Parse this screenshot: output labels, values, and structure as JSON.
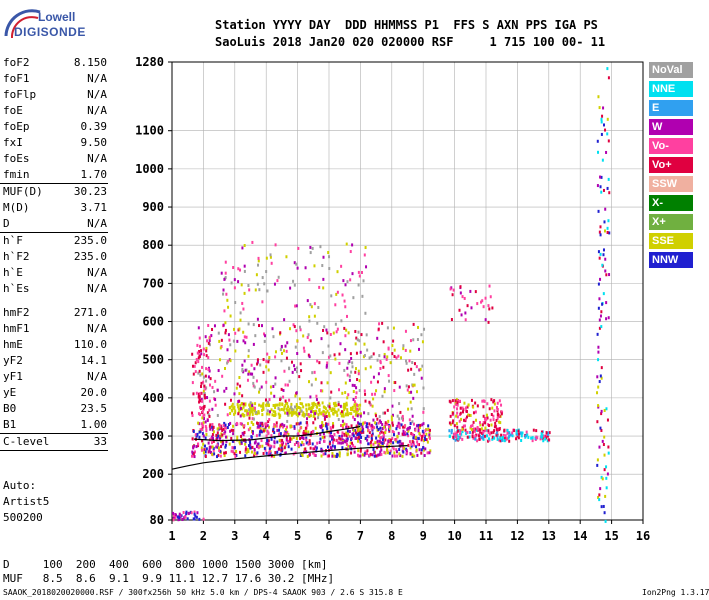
{
  "logo": {
    "top": "Lowell",
    "bottom": "DIGISONDE"
  },
  "header": {
    "line1": "Station YYYY DAY  DDD HHMMSS P1  FFS S AXN PPS IGA PS",
    "line2": "SaoLuis 2018 Jan20 020 020000 RSF     1 715 100 00- 11"
  },
  "params": [
    {
      "k": "foF2",
      "v": "8.150"
    },
    {
      "k": "foF1",
      "v": "N/A"
    },
    {
      "k": "foFlp",
      "v": "N/A"
    },
    {
      "k": "foE",
      "v": "N/A"
    },
    {
      "k": "foEp",
      "v": "0.39"
    },
    {
      "k": "fxI",
      "v": "9.50"
    },
    {
      "k": "foEs",
      "v": "N/A"
    },
    {
      "k": "fmin",
      "v": "1.70"
    },
    {
      "sep": true
    },
    {
      "k": "MUF(D)",
      "v": "30.23"
    },
    {
      "k": "M(D)",
      "v": "3.71"
    },
    {
      "k": "D",
      "v": "N/A"
    },
    {
      "sep": true
    },
    {
      "k": "h`F",
      "v": "235.0"
    },
    {
      "k": "h`F2",
      "v": "235.0"
    },
    {
      "k": "h`E",
      "v": "N/A"
    },
    {
      "k": "h`Es",
      "v": "N/A"
    },
    {
      "gap": true
    },
    {
      "k": "hmF2",
      "v": "271.0"
    },
    {
      "k": "hmF1",
      "v": "N/A"
    },
    {
      "k": "hmE",
      "v": "110.0"
    },
    {
      "k": "yF2",
      "v": "14.1"
    },
    {
      "k": "yF1",
      "v": "N/A"
    },
    {
      "k": "yE",
      "v": "20.0"
    },
    {
      "k": "B0",
      "v": "23.5"
    },
    {
      "k": "B1",
      "v": "1.00"
    },
    {
      "sep": true
    },
    {
      "k": "C-level",
      "v": "33"
    },
    {
      "sep": true
    }
  ],
  "auto": [
    "Auto:",
    "Artist5",
    "500200"
  ],
  "footer": {
    "d_row": "D     100  200  400  600  800 1000 1500 3000 [km]",
    "muf_row": "MUF   8.5  8.6  9.1  9.9 11.1 12.7 17.6 30.2 [MHz]",
    "file_info": "SAAOK_2018020020000.RSF / 300fx256h 50 kHz 5.0 km / DPS-4 SAAOK 903 / 2.6 S 315.8 E",
    "version": "Ion2Png 1.3.17"
  },
  "legend": [
    {
      "label": "NoVal",
      "color": "#a0a0a0"
    },
    {
      "label": "NNE",
      "color": "#00e0f0"
    },
    {
      "label": "E",
      "color": "#30a0f0"
    },
    {
      "label": "W",
      "color": "#b000b0"
    },
    {
      "label": "Vo-",
      "color": "#ff40a0"
    },
    {
      "label": "Vo+",
      "color": "#e00040"
    },
    {
      "label": "SSW",
      "color": "#f0b0a0"
    },
    {
      "label": "X-",
      "color": "#008000"
    },
    {
      "label": "X+",
      "color": "#70b040"
    },
    {
      "label": "SSE",
      "color": "#d0d000"
    },
    {
      "label": "NNW",
      "color": "#2020d0"
    }
  ],
  "chart_data": {
    "type": "scatter",
    "xlim": [
      1,
      16
    ],
    "ylim": [
      80,
      1280
    ],
    "x_ticks": [
      1,
      2,
      3,
      4,
      5,
      6,
      7,
      8,
      9,
      10,
      11,
      12,
      13,
      14,
      15,
      16
    ],
    "y_ticks": [
      80,
      200,
      300,
      400,
      500,
      600,
      700,
      800,
      900,
      1000,
      1100,
      1280
    ],
    "grid": true,
    "profile_curve": [
      [
        1.0,
        213
      ],
      [
        1.5,
        222
      ],
      [
        2.0,
        230
      ],
      [
        3.0,
        240
      ],
      [
        4.0,
        248
      ],
      [
        5.0,
        255
      ],
      [
        6.0,
        262
      ],
      [
        7.0,
        268
      ],
      [
        8.0,
        273
      ],
      [
        8.5,
        275
      ]
    ],
    "trace_curve": [
      [
        1.7,
        292
      ],
      [
        2.5,
        288
      ],
      [
        3.5,
        290
      ],
      [
        4.5,
        300
      ],
      [
        5.0,
        300
      ],
      [
        5.5,
        305
      ],
      [
        6.0,
        312
      ],
      [
        6.5,
        318
      ],
      [
        7.0,
        325
      ]
    ],
    "echo_regions": [
      {
        "x0": 1.6,
        "x1": 9.2,
        "y0": 250,
        "y1": 340,
        "colors": [
          "#ff40a0",
          "#e00040",
          "#b000b0",
          "#d0d000",
          "#2020d0"
        ],
        "density": 900
      },
      {
        "x0": 2.8,
        "x1": 7.0,
        "y0": 355,
        "y1": 390,
        "colors": [
          "#d0d000"
        ],
        "density": 260
      },
      {
        "x0": 1.8,
        "x1": 9.0,
        "y0": 340,
        "y1": 600,
        "colors": [
          "#ff40a0",
          "#e00040",
          "#b000b0",
          "#d0d000",
          "#a0a0a0"
        ],
        "density": 500
      },
      {
        "x0": 2.5,
        "x1": 7.2,
        "y0": 600,
        "y1": 820,
        "colors": [
          "#ff40a0",
          "#b000b0",
          "#d0d000",
          "#a0a0a0"
        ],
        "density": 120
      },
      {
        "x0": 9.8,
        "x1": 13.0,
        "y0": 290,
        "y1": 320,
        "colors": [
          "#ff40a0",
          "#00e0f0",
          "#30a0f0",
          "#e00040"
        ],
        "density": 180
      },
      {
        "x0": 9.8,
        "x1": 11.5,
        "y0": 320,
        "y1": 400,
        "colors": [
          "#e00040",
          "#d0d000",
          "#ff40a0"
        ],
        "density": 140
      },
      {
        "x0": 9.8,
        "x1": 11.2,
        "y0": 600,
        "y1": 700,
        "colors": [
          "#b000b0",
          "#ff40a0",
          "#e00040"
        ],
        "density": 30
      },
      {
        "x0": 14.5,
        "x1": 14.9,
        "y0": 80,
        "y1": 1280,
        "colors": [
          "#2020d0",
          "#b000b0",
          "#d0d000",
          "#00e0f0",
          "#e00040"
        ],
        "density": 110
      },
      {
        "x0": 1.0,
        "x1": 2.0,
        "y0": 84,
        "y1": 105,
        "colors": [
          "#2020d0",
          "#b000b0",
          "#ff40a0"
        ],
        "density": 40
      },
      {
        "x0": 1.6,
        "x1": 2.2,
        "y0": 350,
        "y1": 560,
        "colors": [
          "#e00040",
          "#ff40a0"
        ],
        "density": 60
      }
    ]
  }
}
